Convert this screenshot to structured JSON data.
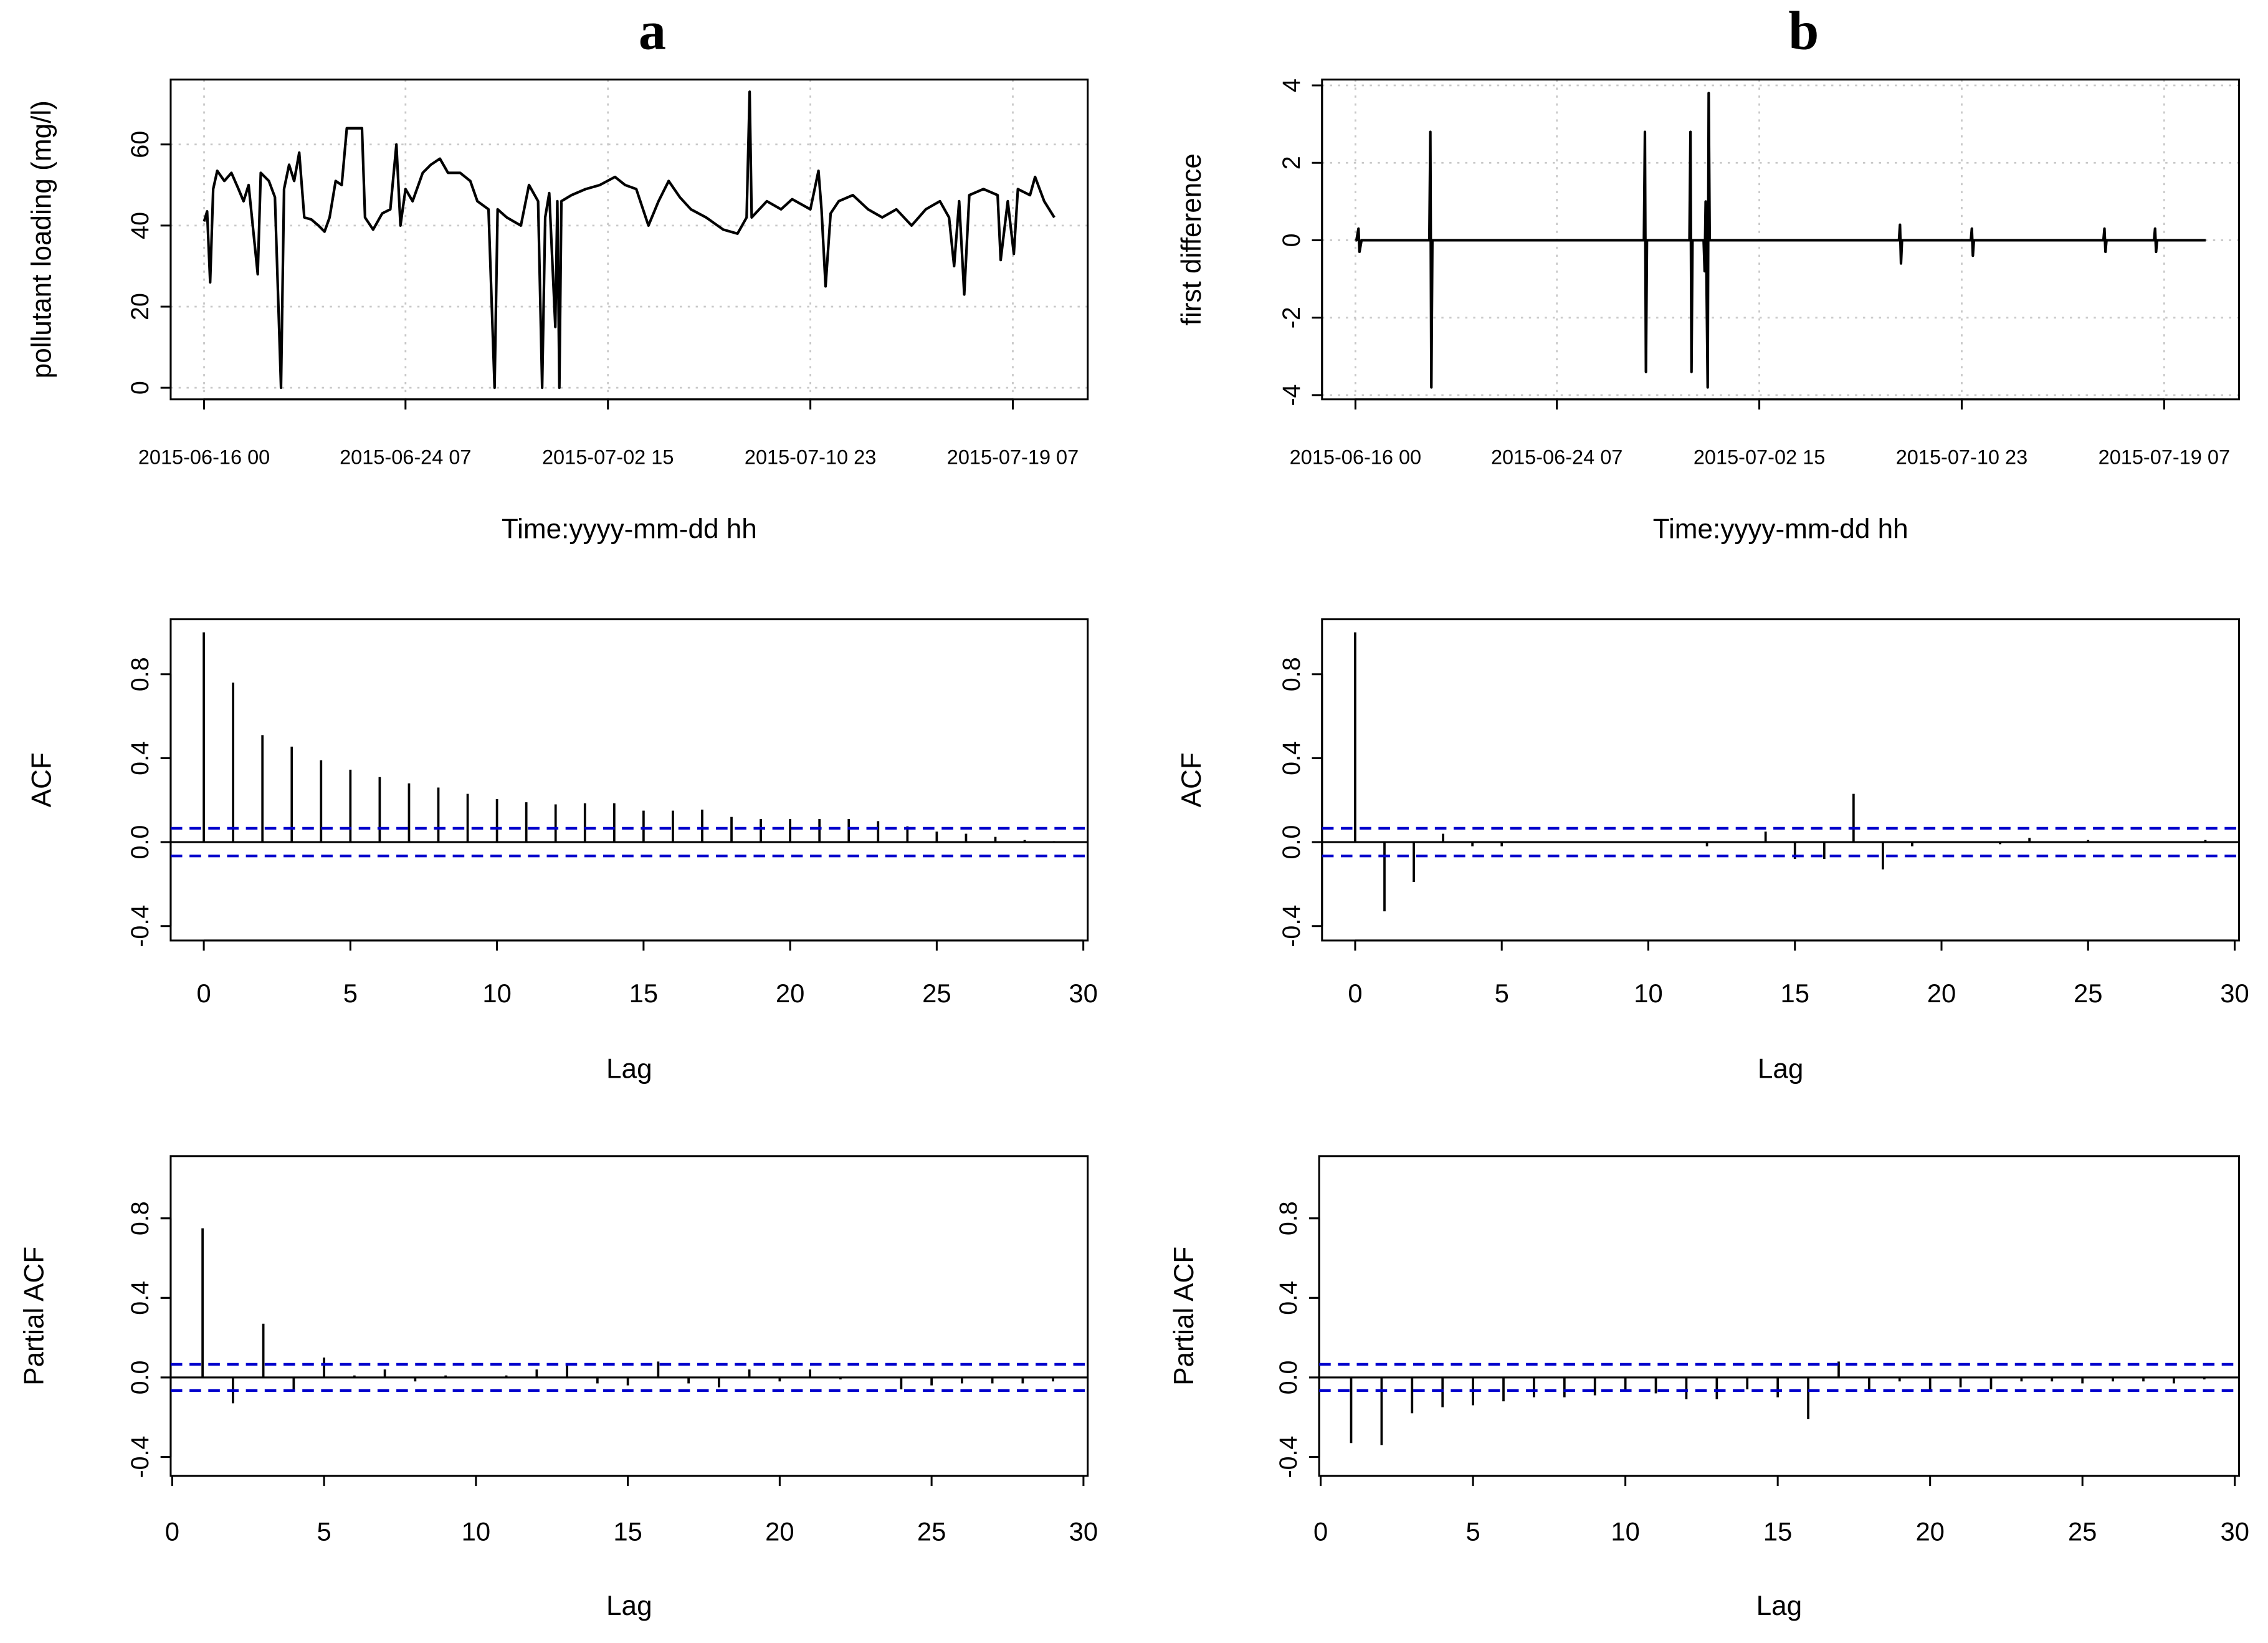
{
  "chart_data": [
    {
      "type": "line",
      "title": "a",
      "xlabel": "Time:yyyy-mm-dd hh",
      "ylabel": "pollutant loading (mg/l)",
      "color": "#000000",
      "grid": true,
      "xlim": [
        "2015-06-14 15",
        "2015-07-22 09"
      ],
      "ylim": [
        -2.86,
        76
      ],
      "xticks": [
        "2015-06-16 00",
        "2015-06-24 07",
        "2015-07-02 15",
        "2015-07-10 23",
        "2015-07-19 07"
      ],
      "yticks": [
        0,
        20,
        40,
        60
      ],
      "x": [
        "2015-06-16 00",
        "2015-06-16 03",
        "2015-06-16 06",
        "2015-06-16 09",
        "2015-06-16 13",
        "2015-06-16 20",
        "2015-06-17 03",
        "2015-06-17 10",
        "2015-06-17 15",
        "2015-06-17 20",
        "2015-06-18 05",
        "2015-06-18 08",
        "2015-06-18 16",
        "2015-06-18 22",
        "2015-06-19 04",
        "2015-06-19 07",
        "2015-06-19 12",
        "2015-06-19 17",
        "2015-06-19 22",
        "2015-06-20 03",
        "2015-06-20 10",
        "2015-06-20 17",
        "2015-06-20 23",
        "2015-06-21 04",
        "2015-06-21 10",
        "2015-06-21 16",
        "2015-06-21 21",
        "2015-06-22 12",
        "2015-06-22 15",
        "2015-06-22 23",
        "2015-06-23 08",
        "2015-06-23 16",
        "2015-06-23 22",
        "2015-06-24 02",
        "2015-06-24 07",
        "2015-06-24 14",
        "2015-06-25 00",
        "2015-06-25 08",
        "2015-06-25 17",
        "2015-06-26 01",
        "2015-06-26 13",
        "2015-06-26 23",
        "2015-06-27 06",
        "2015-06-27 17",
        "2015-06-27 23",
        "2015-06-28 02",
        "2015-06-28 11",
        "2015-06-29 01",
        "2015-06-29 09",
        "2015-06-29 18",
        "2015-06-29 22",
        "2015-06-30 01",
        "2015-06-30 05",
        "2015-06-30 11",
        "2015-06-30 13",
        "2015-06-30 15",
        "2015-06-30 17",
        "2015-07-01 03",
        "2015-07-01 17",
        "2015-07-02 07",
        "2015-07-02 22",
        "2015-07-03 08",
        "2015-07-03 19",
        "2015-07-04 07",
        "2015-07-04 17",
        "2015-07-05 03",
        "2015-07-05 14",
        "2015-07-06 01",
        "2015-07-06 16",
        "2015-07-07 09",
        "2015-07-07 23",
        "2015-07-08 08",
        "2015-07-08 11",
        "2015-07-08 13",
        "2015-07-09 04",
        "2015-07-09 18",
        "2015-07-10 05",
        "2015-07-10 23",
        "2015-07-11 07",
        "2015-07-11 10",
        "2015-07-11 14",
        "2015-07-11 19",
        "2015-07-12 03",
        "2015-07-12 17",
        "2015-07-13 08",
        "2015-07-13 22",
        "2015-07-14 12",
        "2015-07-15 03",
        "2015-07-15 17",
        "2015-07-16 07",
        "2015-07-16 16",
        "2015-07-16 21",
        "2015-07-17 02",
        "2015-07-17 07",
        "2015-07-17 12",
        "2015-07-18 02",
        "2015-07-18 16",
        "2015-07-18 19",
        "2015-07-19 02",
        "2015-07-19 08",
        "2015-07-19 12",
        "2015-07-20 00",
        "2015-07-20 05",
        "2015-07-20 14",
        "2015-07-21 00"
      ],
      "values": [
        41,
        43.5,
        26,
        49,
        53.5,
        51,
        53,
        49,
        46,
        50,
        28,
        53,
        51,
        47,
        0,
        49,
        55,
        51,
        58,
        42,
        41.5,
        40,
        38.5,
        42,
        51,
        50,
        64,
        64,
        42,
        39,
        43,
        44,
        60,
        40,
        49,
        46,
        53,
        55,
        56.5,
        53,
        53,
        51,
        46,
        44,
        0,
        44,
        42,
        40,
        50,
        46,
        0,
        42,
        48,
        15,
        46,
        0,
        46,
        47.5,
        49,
        50,
        52,
        50,
        49,
        40,
        46,
        51,
        47,
        44,
        42,
        39,
        38,
        42,
        73,
        42,
        46,
        44,
        46.5,
        44,
        53.5,
        44,
        25,
        43,
        46,
        47.5,
        44,
        42,
        44,
        40,
        44,
        46,
        42,
        30,
        46,
        23,
        47.5,
        49,
        47.5,
        31.5,
        46,
        33,
        49,
        47.5,
        52,
        46,
        42
      ]
    },
    {
      "type": "stem",
      "xlabel": "Lag",
      "ylabel": "ACF",
      "color": "#000000",
      "ci_color": "#0000cc",
      "xlim": [
        -1.13,
        30.15
      ],
      "ylim": [
        -0.469,
        1.062
      ],
      "xticks": [
        0,
        5,
        10,
        15,
        20,
        25,
        30
      ],
      "yticks": [
        -0.4,
        {
          "value": 0,
          "label": "0.0"
        },
        0.4,
        0.8
      ],
      "confidence_limits": [
        0.066,
        -0.066
      ],
      "x": [
        0,
        1,
        2,
        3,
        4,
        5,
        6,
        7,
        8,
        9,
        10,
        11,
        12,
        13,
        14,
        15,
        16,
        17,
        18,
        19,
        20,
        21,
        22,
        23,
        24,
        25,
        26,
        27,
        28,
        29
      ],
      "values": [
        1.0,
        0.76,
        0.51,
        0.455,
        0.39,
        0.345,
        0.31,
        0.28,
        0.26,
        0.23,
        0.205,
        0.19,
        0.18,
        0.185,
        0.185,
        0.15,
        0.15,
        0.155,
        0.12,
        0.11,
        0.11,
        0.11,
        0.11,
        0.1,
        0.075,
        0.05,
        0.04,
        0.025,
        0.01,
        0.005
      ]
    },
    {
      "type": "stem",
      "xlabel": "Lag",
      "ylabel": "Partial ACF",
      "color": "#000000",
      "ci_color": "#0000cc",
      "xlim": [
        -0.05,
        30.14
      ],
      "ylim": [
        -0.495,
        1.113
      ],
      "xticks": [
        0,
        5,
        10,
        15,
        20,
        25,
        30
      ],
      "yticks": [
        -0.4,
        {
          "value": 0,
          "label": "0.0"
        },
        0.4,
        0.8
      ],
      "confidence_limits": [
        0.066,
        -0.066
      ],
      "x": [
        1,
        2,
        3,
        4,
        5,
        6,
        7,
        8,
        9,
        10,
        11,
        12,
        13,
        14,
        15,
        16,
        17,
        18,
        19,
        20,
        21,
        22,
        23,
        24,
        25,
        26,
        27,
        28,
        29
      ],
      "values": [
        0.75,
        -0.13,
        0.27,
        -0.06,
        0.1,
        0.01,
        0.04,
        -0.02,
        0.01,
        0,
        0.01,
        0.04,
        0.06,
        -0.03,
        -0.04,
        0.08,
        -0.03,
        -0.05,
        0.04,
        -0.02,
        0.04,
        -0.01,
        0,
        -0.06,
        -0.04,
        -0.03,
        -0.03,
        -0.03,
        -0.02
      ]
    },
    {
      "type": "line",
      "title": "b",
      "xlabel": "Time:yyyy-mm-dd hh",
      "ylabel": "first difference",
      "color": "#000000",
      "grid": true,
      "xlim": [
        "2015-06-14 15",
        "2015-07-22 09"
      ],
      "ylim": [
        -4.11,
        4.15
      ],
      "xticks": [
        "2015-06-16 00",
        "2015-06-24 07",
        "2015-07-02 15",
        "2015-07-10 23",
        "2015-07-19 07"
      ],
      "yticks": [
        -4,
        -2,
        0,
        2,
        4
      ],
      "x": [
        "2015-06-16 00",
        "2015-06-16 01",
        "2015-06-16 03",
        "2015-06-16 04",
        "2015-06-16 06",
        "2015-06-19 01",
        "2015-06-19 02",
        "2015-06-19 03",
        "2015-06-19 04",
        "2015-06-27 21",
        "2015-06-27 22",
        "2015-06-27 23",
        "2015-06-28 00",
        "2015-06-29 18",
        "2015-06-29 19",
        "2015-06-29 20",
        "2015-06-29 21",
        "2015-06-30 08",
        "2015-06-30 09",
        "2015-06-30 10",
        "2015-06-30 12",
        "2015-06-30 13",
        "2015-06-30 14",
        "2015-07-08 09",
        "2015-07-08 10",
        "2015-07-08 11",
        "2015-07-08 12",
        "2015-07-11 08",
        "2015-07-11 09",
        "2015-07-11 10",
        "2015-07-11 11",
        "2015-07-16 19",
        "2015-07-16 20",
        "2015-07-16 21",
        "2015-07-16 22",
        "2015-07-18 21",
        "2015-07-18 22",
        "2015-07-18 23",
        "2015-07-19 00",
        "2015-07-21 00"
      ],
      "values": [
        0,
        0,
        0.3,
        -0.3,
        0,
        0,
        2.8,
        -3.8,
        0,
        0,
        2.8,
        -3.4,
        0,
        0,
        2.8,
        -3.4,
        0,
        0,
        -0.8,
        1.0,
        -3.8,
        3.8,
        0,
        0,
        0.4,
        -0.6,
        0,
        0,
        0.3,
        -0.4,
        0,
        0,
        0.3,
        -0.3,
        0,
        0,
        0.3,
        -0.3,
        0,
        0
      ]
    },
    {
      "type": "stem",
      "xlabel": "Lag",
      "ylabel": "ACF",
      "color": "#000000",
      "ci_color": "#0000cc",
      "xlim": [
        -1.13,
        30.15
      ],
      "ylim": [
        -0.469,
        1.062
      ],
      "xticks": [
        0,
        5,
        10,
        15,
        20,
        25,
        30
      ],
      "yticks": [
        -0.4,
        {
          "value": 0,
          "label": "0.0"
        },
        0.4,
        0.8
      ],
      "confidence_limits": [
        0.066,
        -0.066
      ],
      "x": [
        0,
        1,
        2,
        3,
        4,
        5,
        6,
        7,
        8,
        9,
        10,
        11,
        12,
        13,
        14,
        15,
        16,
        17,
        18,
        19,
        20,
        21,
        22,
        23,
        24,
        25,
        26,
        27,
        28,
        29
      ],
      "values": [
        1.0,
        -0.33,
        -0.19,
        0.04,
        -0.02,
        -0.02,
        0,
        0,
        0,
        0,
        0,
        0,
        -0.02,
        0,
        0.05,
        -0.08,
        -0.08,
        0.23,
        -0.13,
        -0.02,
        0,
        0,
        -0.01,
        0.02,
        0,
        0.01,
        0,
        0,
        0,
        0.01
      ]
    },
    {
      "type": "stem",
      "xlabel": "Lag",
      "ylabel": "Partial ACF",
      "color": "#000000",
      "ci_color": "#0000cc",
      "xlim": [
        -0.05,
        30.14
      ],
      "ylim": [
        -0.495,
        1.113
      ],
      "xticks": [
        0,
        5,
        10,
        15,
        20,
        25,
        30
      ],
      "yticks": [
        -0.4,
        {
          "value": 0,
          "label": "0.0"
        },
        0.4,
        0.8
      ],
      "confidence_limits": [
        0.066,
        -0.066
      ],
      "x": [
        1,
        2,
        3,
        4,
        5,
        6,
        7,
        8,
        9,
        10,
        11,
        12,
        13,
        14,
        15,
        16,
        17,
        18,
        19,
        20,
        21,
        22,
        23,
        24,
        25,
        26,
        27,
        28,
        29
      ],
      "values": [
        -0.33,
        -0.34,
        -0.18,
        -0.15,
        -0.14,
        -0.12,
        -0.1,
        -0.1,
        -0.09,
        -0.07,
        -0.08,
        -0.11,
        -0.11,
        -0.06,
        -0.1,
        -0.21,
        0.08,
        -0.07,
        -0.02,
        -0.07,
        -0.05,
        -0.06,
        -0.02,
        -0.02,
        -0.03,
        -0.02,
        -0.02,
        -0.03,
        -0.01
      ]
    }
  ]
}
